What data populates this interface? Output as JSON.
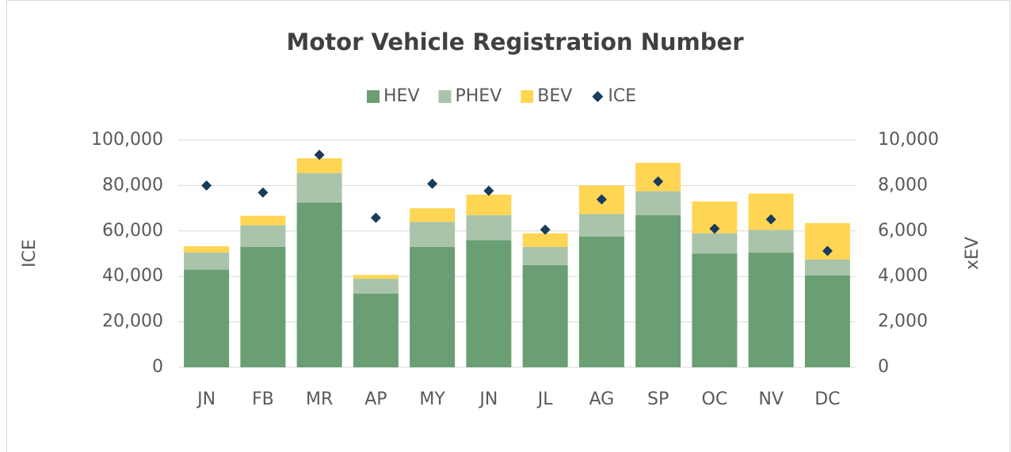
{
  "chart_data": {
    "type": "bar",
    "stacked": true,
    "title": "Motor Vehicle Registration Number",
    "ylabel": "ICE",
    "y2label": "xEV",
    "categories": [
      "JN",
      "FB",
      "MR",
      "AP",
      "MY",
      "JN",
      "JL",
      "AG",
      "SP",
      "OC",
      "NV",
      "DC"
    ],
    "series": [
      {
        "name": "HEV",
        "color": "#6a9e73",
        "type": "bar",
        "axis": "y2",
        "values": [
          4300,
          5300,
          7250,
          3250,
          5300,
          5600,
          4500,
          5750,
          6700,
          5000,
          5050,
          4050
        ]
      },
      {
        "name": "PHEV",
        "color": "#a9c4aa",
        "type": "bar",
        "axis": "y2",
        "values": [
          750,
          950,
          1300,
          650,
          1100,
          1100,
          800,
          1000,
          1050,
          900,
          1000,
          700
        ]
      },
      {
        "name": "BEV",
        "color": "#ffd654",
        "type": "bar",
        "axis": "y2",
        "values": [
          280,
          420,
          650,
          170,
          600,
          900,
          600,
          1250,
          1250,
          1400,
          1600,
          1600
        ]
      },
      {
        "name": "ICE",
        "color": "#173c5c",
        "type": "marker",
        "marker": "diamond",
        "values": [
          80000,
          76900,
          93500,
          65800,
          80800,
          77700,
          60600,
          73900,
          81800,
          61000,
          65100,
          51200
        ]
      }
    ],
    "ylim": [
      0,
      100000
    ],
    "yticks": [
      {
        "value": 0,
        "label": "0"
      },
      {
        "value": 20000,
        "label": "20,000"
      },
      {
        "value": 40000,
        "label": "40,000"
      },
      {
        "value": 60000,
        "label": "60,000"
      },
      {
        "value": 80000,
        "label": "80,000"
      },
      {
        "value": 100000,
        "label": "100,000"
      }
    ],
    "y2lim": [
      0,
      10000
    ],
    "y2ticks": [
      {
        "value": 0,
        "label": "0"
      },
      {
        "value": 2000,
        "label": "2,000"
      },
      {
        "value": 4000,
        "label": "4,000"
      },
      {
        "value": 6000,
        "label": "6,000"
      },
      {
        "value": 8000,
        "label": "8,000"
      },
      {
        "value": 10000,
        "label": "10,000"
      }
    ],
    "grid": true,
    "legend": "top"
  }
}
